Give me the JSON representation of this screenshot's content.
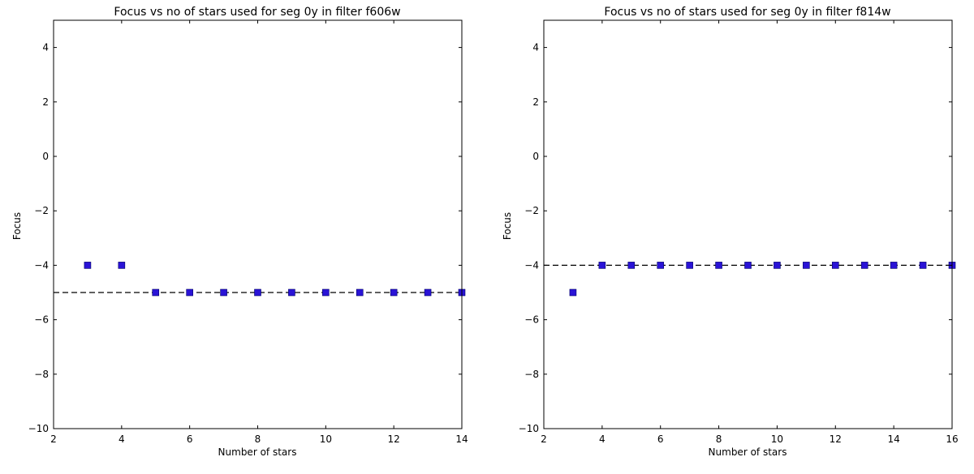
{
  "chart_data": [
    {
      "type": "scatter",
      "title": "Focus vs no of stars used for seg 0y in filter f606w",
      "xlabel": "Number of stars",
      "ylabel": "Focus",
      "xlim": [
        2,
        14
      ],
      "ylim": [
        -10,
        5
      ],
      "xticks": [
        2,
        4,
        6,
        8,
        10,
        12,
        14
      ],
      "yticks": [
        -10,
        -8,
        -6,
        -4,
        -2,
        0,
        2,
        4
      ],
      "x": [
        3,
        4,
        5,
        6,
        7,
        8,
        9,
        10,
        11,
        12,
        13,
        14
      ],
      "y": [
        -4,
        -4,
        -5,
        -5,
        -5,
        -5,
        -5,
        -5,
        -5,
        -5,
        -5,
        -5
      ],
      "reference_line_y": -5,
      "marker_color": "#2a13d6",
      "grid": false
    },
    {
      "type": "scatter",
      "title": "Focus vs no of stars used for seg 0y in filter f814w",
      "xlabel": "Number of stars",
      "ylabel": "Focus",
      "xlim": [
        2,
        16
      ],
      "ylim": [
        -10,
        5
      ],
      "xticks": [
        2,
        4,
        6,
        8,
        10,
        12,
        14,
        16
      ],
      "yticks": [
        -10,
        -8,
        -6,
        -4,
        -2,
        0,
        2,
        4
      ],
      "x": [
        3,
        4,
        5,
        6,
        7,
        8,
        9,
        10,
        11,
        12,
        13,
        14,
        15,
        16
      ],
      "y": [
        -5,
        -4,
        -4,
        -4,
        -4,
        -4,
        -4,
        -4,
        -4,
        -4,
        -4,
        -4,
        -4,
        -4
      ],
      "reference_line_y": -4,
      "marker_color": "#2a13d6",
      "grid": false
    }
  ]
}
